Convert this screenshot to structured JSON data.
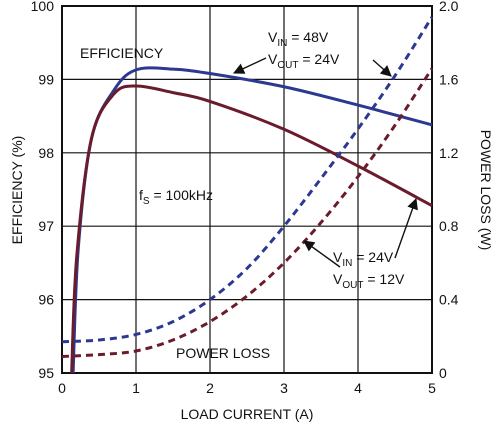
{
  "chart_data": {
    "type": "line",
    "xlabel": "LOAD CURRENT (A)",
    "ylabel_left": "EFFICIENCY (%)",
    "ylabel_right": "POWER LOSS (W)",
    "xlim": [
      0,
      5
    ],
    "ylim_left": [
      95,
      100
    ],
    "ylim_right": [
      0,
      2.0
    ],
    "x_ticks": [
      "0",
      "1",
      "2",
      "3",
      "4",
      "5"
    ],
    "y_left_ticks": [
      "95",
      "96",
      "97",
      "98",
      "99",
      "100"
    ],
    "y_right_ticks": [
      "0",
      "0.4",
      "0.8",
      "1.2",
      "1.6",
      "2.0"
    ],
    "grid": true,
    "series": [
      {
        "name": "EFFICIENCY V_IN = 48V, V_OUT = 24V",
        "axis": "left",
        "style": "solid",
        "color": "#2d3990",
        "x": [
          0.15,
          0.22,
          0.4,
          0.7,
          1.0,
          1.5,
          2.0,
          3.0,
          4.0,
          5.0
        ],
        "y": [
          95.0,
          96.7,
          98.2,
          98.85,
          99.13,
          99.14,
          99.08,
          98.9,
          98.65,
          98.38
        ]
      },
      {
        "name": "EFFICIENCY V_IN = 24V, V_OUT = 12V",
        "axis": "left",
        "style": "solid",
        "color": "#6b1c2c",
        "x": [
          0.13,
          0.2,
          0.4,
          0.7,
          1.0,
          1.5,
          2.0,
          3.0,
          4.0,
          5.0
        ],
        "y": [
          95.0,
          96.6,
          98.2,
          98.8,
          98.91,
          98.82,
          98.7,
          98.32,
          97.82,
          97.28
        ]
      },
      {
        "name": "POWER LOSS V_IN = 48V, V_OUT = 24V",
        "axis": "right",
        "style": "dashed",
        "color": "#2d3990",
        "x": [
          0,
          0.5,
          1.0,
          1.5,
          2.0,
          2.5,
          3.0,
          3.5,
          4.0,
          4.5,
          5.0
        ],
        "y": [
          0.17,
          0.18,
          0.21,
          0.28,
          0.4,
          0.57,
          0.8,
          1.06,
          1.33,
          1.62,
          1.94
        ]
      },
      {
        "name": "POWER LOSS V_IN = 24V, V_OUT = 12V",
        "axis": "right",
        "style": "dashed",
        "color": "#6b1c2c",
        "x": [
          0,
          0.5,
          1.0,
          1.5,
          2.0,
          2.5,
          3.0,
          3.5,
          4.0,
          4.5,
          5.0
        ],
        "y": [
          0.09,
          0.1,
          0.12,
          0.18,
          0.28,
          0.42,
          0.6,
          0.82,
          1.07,
          1.35,
          1.66
        ]
      }
    ],
    "annotations": {
      "efficiency": "EFFICIENCY",
      "power_loss": "POWER LOSS",
      "fs_main": "f",
      "fs_sub": "S",
      "fs_rest": " = 100kHz",
      "vin48_main": "V",
      "vin48_sub": "IN",
      "vin48_rest": " = 48V",
      "vout24_main": "V",
      "vout24_sub": "OUT",
      "vout24_rest": " = 24V",
      "vin24_main": "V",
      "vin24_sub": "IN",
      "vin24_rest": " = 24V",
      "vout12_main": "V",
      "vout12_sub": "OUT",
      "vout12_rest": " = 12V"
    }
  }
}
